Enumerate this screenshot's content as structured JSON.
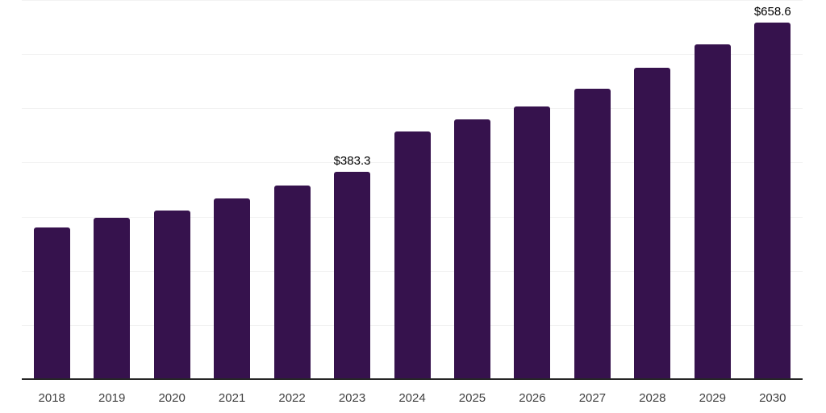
{
  "chart_data": {
    "type": "bar",
    "title": "",
    "categories": [
      "2018",
      "2019",
      "2020",
      "2021",
      "2022",
      "2023",
      "2024",
      "2025",
      "2026",
      "2027",
      "2028",
      "2029",
      "2030"
    ],
    "values": [
      280.0,
      297.8,
      311.2,
      333.6,
      357.5,
      383.3,
      457.2,
      478.9,
      503.8,
      535.6,
      575.0,
      617.7,
      658.6
    ],
    "labeled_points": [
      {
        "category": "2023",
        "label": "$383.3"
      },
      {
        "category": "2030",
        "label": "$658.6"
      }
    ],
    "value_prefix": "$",
    "xlabel": "",
    "ylabel": "",
    "ylim": [
      0,
      700
    ],
    "gridline_step": 100,
    "grid": true,
    "legend_position": "none",
    "colors": {
      "bar": "#36124d",
      "gridline": "#f2f2f2",
      "axis_line": "#262626",
      "tick_label": "#404040",
      "data_label": "#000000",
      "background": "#ffffff"
    }
  }
}
